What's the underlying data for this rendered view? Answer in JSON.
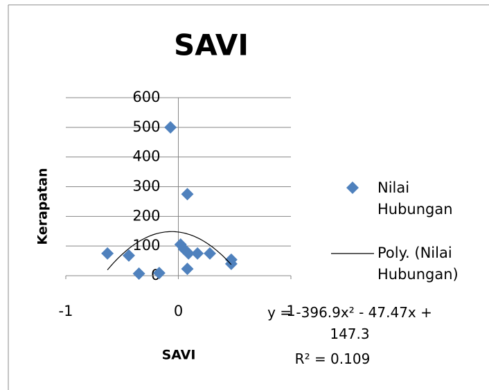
{
  "chart_data": {
    "type": "scatter",
    "title": "SAVI",
    "x_label": "SAVI",
    "y_label": "Kerapatan",
    "xlim": [
      -1,
      1
    ],
    "xticks": [
      -1,
      0,
      1
    ],
    "ylim": [
      0,
      600
    ],
    "yticks": [
      0,
      100,
      200,
      300,
      400,
      500,
      600
    ],
    "grid": true,
    "legend_position": "right",
    "series": [
      {
        "name": "Nilai Hubungan",
        "color": "#4f81bd",
        "x": [
          -0.07,
          0.08,
          0.02,
          0.05,
          0.09,
          0.17,
          0.28,
          0.47,
          0.47,
          0.08,
          -0.63,
          -0.44,
          -0.35,
          -0.17
        ],
        "values": [
          500,
          275,
          105,
          90,
          75,
          75,
          75,
          54,
          40,
          23,
          75,
          68,
          7,
          9
        ]
      }
    ],
    "trendline": {
      "name": "Poly. (Nilai Hubungan)",
      "color": "#000000",
      "coefficients": [
        -396.9,
        -47.47,
        147.3
      ],
      "equation": "y = -396.9x² - 47.47x + 147.3",
      "r2": "R² = 0.109"
    }
  }
}
